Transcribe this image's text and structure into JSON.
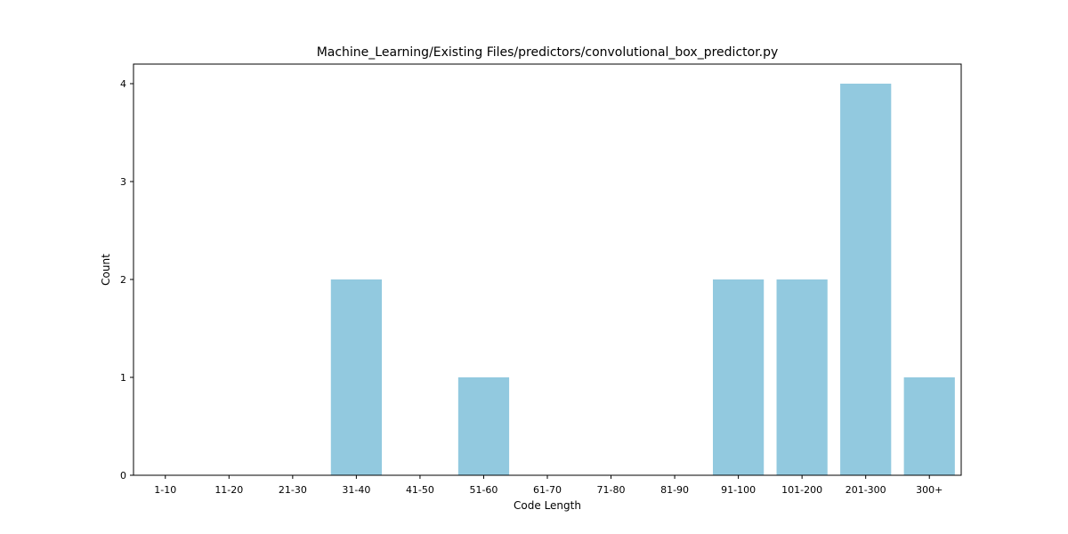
{
  "chart_data": {
    "type": "bar",
    "title": "Machine_Learning/Existing Files/predictors/convolutional_box_predictor.py",
    "xlabel": "Code Length",
    "ylabel": "Count",
    "categories": [
      "1-10",
      "11-20",
      "21-30",
      "31-40",
      "41-50",
      "51-60",
      "61-70",
      "71-80",
      "81-90",
      "91-100",
      "101-200",
      "201-300",
      "300+"
    ],
    "values": [
      0,
      0,
      0,
      2,
      0,
      1,
      0,
      0,
      0,
      2,
      2,
      4,
      1
    ],
    "yticks": [
      "0",
      "1",
      "2",
      "3",
      "4"
    ],
    "ylim": [
      0,
      4.2
    ],
    "grid": false,
    "bar_color": "#92c9df"
  }
}
